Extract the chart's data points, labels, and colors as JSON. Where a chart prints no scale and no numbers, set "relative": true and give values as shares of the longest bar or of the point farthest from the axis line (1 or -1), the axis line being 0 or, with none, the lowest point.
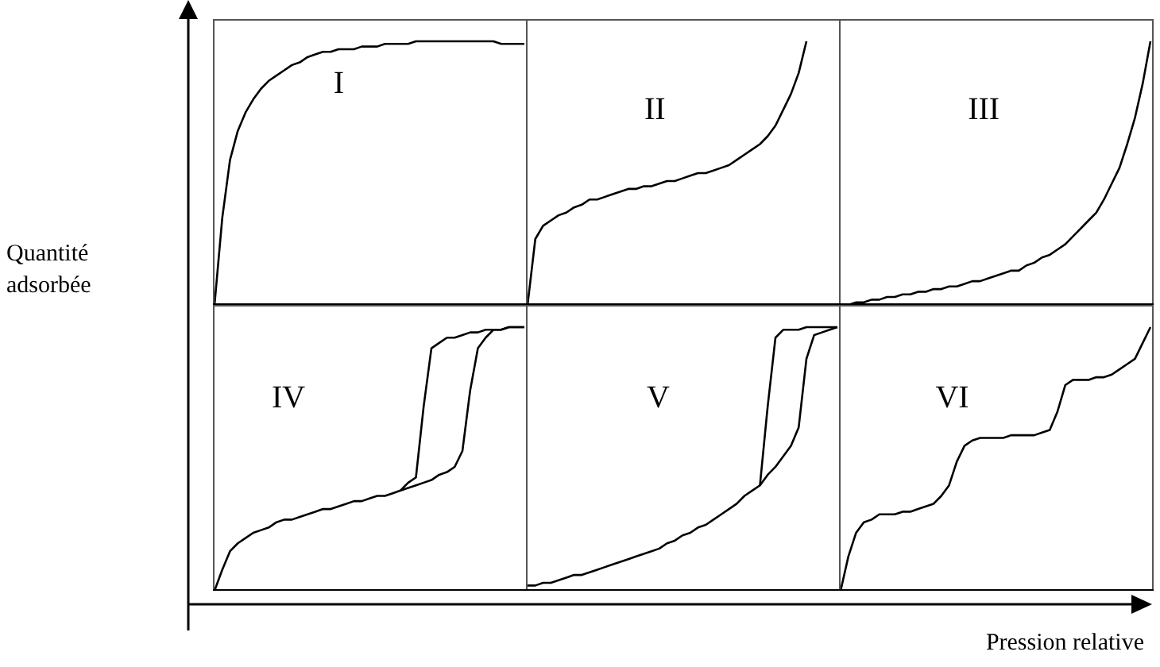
{
  "chart_data": [
    {
      "type": "line",
      "title": "I",
      "relative": true,
      "marker": "none",
      "ylabel": "Quantité adsorbée",
      "categories": [
        null,
        null,
        null,
        null,
        null,
        null,
        null,
        null,
        null,
        null,
        null,
        null,
        null,
        null,
        null,
        null,
        null,
        null,
        null,
        null,
        null,
        null,
        null,
        null,
        null,
        null,
        null,
        null,
        null,
        null,
        null,
        null,
        null,
        null,
        null,
        null,
        null,
        null,
        null,
        null,
        null
      ],
      "series": [
        {
          "color": "#000000",
          "values": [
            0,
            0.33,
            0.55,
            0.66,
            0.73,
            0.78,
            0.82,
            0.85,
            0.87,
            0.89,
            0.91,
            0.92,
            0.94,
            0.95,
            0.96,
            0.96,
            0.97,
            0.97,
            0.97,
            0.98,
            0.98,
            0.98,
            0.99,
            0.99,
            0.99,
            0.99,
            1,
            1,
            1,
            1,
            1,
            1,
            1,
            1,
            1,
            1,
            1,
            0.99,
            0.99,
            0.99,
            0.99
          ]
        }
      ]
    },
    {
      "type": "line",
      "title": "II",
      "relative": true,
      "marker": "none",
      "categories": [
        null,
        null,
        null,
        null,
        null,
        null,
        null,
        null,
        null,
        null,
        null,
        null,
        null,
        null,
        null,
        null,
        null,
        null,
        null,
        null,
        null,
        null,
        null,
        null,
        null,
        null,
        null,
        null,
        null,
        null,
        null,
        null,
        null,
        null,
        null,
        null,
        null,
        null,
        null,
        null,
        null
      ],
      "series": [
        {
          "color": "#000000",
          "values": [
            0,
            0.25,
            0.3,
            0.32,
            0.34,
            0.35,
            0.37,
            0.38,
            0.4,
            0.4,
            0.41,
            0.42,
            0.43,
            0.44,
            0.44,
            0.45,
            0.45,
            0.46,
            0.47,
            0.47,
            0.48,
            0.49,
            0.5,
            0.5,
            0.51,
            0.52,
            0.53,
            0.55,
            0.57,
            0.59,
            0.61,
            0.64,
            0.68,
            0.74,
            0.8,
            0.88,
            1,
            null,
            null,
            null,
            null
          ]
        }
      ]
    },
    {
      "type": "line",
      "title": "III",
      "relative": true,
      "marker": "none",
      "categories": [
        null,
        null,
        null,
        null,
        null,
        null,
        null,
        null,
        null,
        null,
        null,
        null,
        null,
        null,
        null,
        null,
        null,
        null,
        null,
        null,
        null,
        null,
        null,
        null,
        null,
        null,
        null,
        null,
        null,
        null,
        null,
        null,
        null,
        null,
        null,
        null,
        null,
        null,
        null,
        null,
        null
      ],
      "series": [
        {
          "color": "#000000",
          "values": [
            0,
            0,
            0.01,
            0.01,
            0.02,
            0.02,
            0.03,
            0.03,
            0.04,
            0.04,
            0.05,
            0.05,
            0.06,
            0.06,
            0.07,
            0.07,
            0.08,
            0.09,
            0.09,
            0.1,
            0.11,
            0.12,
            0.13,
            0.13,
            0.15,
            0.16,
            0.18,
            0.19,
            0.21,
            0.23,
            0.26,
            0.29,
            0.32,
            0.35,
            0.4,
            0.46,
            0.52,
            0.61,
            0.71,
            0.84,
            1
          ]
        }
      ]
    },
    {
      "type": "line",
      "title": "IV",
      "relative": true,
      "marker": "none",
      "categories": [
        null,
        null,
        null,
        null,
        null,
        null,
        null,
        null,
        null,
        null,
        null,
        null,
        null,
        null,
        null,
        null,
        null,
        null,
        null,
        null,
        null,
        null,
        null,
        null,
        null,
        null,
        null,
        null,
        null,
        null,
        null,
        null,
        null,
        null,
        null,
        null,
        null,
        null,
        null,
        null,
        null
      ],
      "series": [
        {
          "color": "#000000",
          "values": [
            0,
            0.08,
            0.15,
            0.18,
            0.2,
            0.22,
            0.23,
            0.24,
            0.26,
            0.27,
            0.27,
            0.28,
            0.29,
            0.3,
            0.31,
            0.31,
            0.32,
            0.33,
            0.34,
            0.34,
            0.35,
            0.36,
            0.36,
            0.37,
            0.38,
            0.39,
            0.4,
            0.41,
            0.42,
            0.44,
            0.45,
            0.47,
            0.53,
            0.76,
            0.92,
            0.96,
            0.99,
            0.99,
            1,
            1,
            1
          ]
        },
        {
          "color": "#000000",
          "values": [
            null,
            null,
            null,
            null,
            null,
            null,
            null,
            null,
            null,
            null,
            null,
            null,
            null,
            null,
            null,
            null,
            null,
            null,
            null,
            null,
            null,
            null,
            null,
            null,
            0.38,
            0.41,
            0.43,
            0.7,
            0.92,
            0.94,
            0.96,
            0.96,
            0.97,
            0.98,
            0.98,
            0.99,
            0.99,
            0.99,
            1,
            1,
            1
          ]
        }
      ]
    },
    {
      "type": "line",
      "title": "V",
      "relative": true,
      "marker": "none",
      "categories": [
        null,
        null,
        null,
        null,
        null,
        null,
        null,
        null,
        null,
        null,
        null,
        null,
        null,
        null,
        null,
        null,
        null,
        null,
        null,
        null,
        null,
        null,
        null,
        null,
        null,
        null,
        null,
        null,
        null,
        null,
        null,
        null,
        null,
        null,
        null,
        null,
        null,
        null,
        null,
        null,
        null
      ],
      "series": [
        {
          "color": "#000000",
          "values": [
            0.02,
            0.02,
            0.03,
            0.03,
            0.04,
            0.05,
            0.06,
            0.06,
            0.07,
            0.08,
            0.09,
            0.1,
            0.11,
            0.12,
            0.13,
            0.14,
            0.15,
            0.16,
            0.18,
            0.19,
            0.21,
            0.22,
            0.24,
            0.25,
            0.27,
            0.29,
            0.31,
            0.33,
            0.36,
            0.38,
            0.4,
            0.44,
            0.47,
            0.51,
            0.55,
            0.62,
            0.88,
            0.97,
            0.98,
            0.99,
            1
          ]
        },
        {
          "color": "#000000",
          "values": [
            null,
            null,
            null,
            null,
            null,
            null,
            null,
            null,
            null,
            null,
            null,
            null,
            null,
            null,
            null,
            null,
            null,
            null,
            null,
            null,
            null,
            null,
            null,
            null,
            null,
            null,
            null,
            null,
            null,
            null,
            0.4,
            0.7,
            0.96,
            0.99,
            0.99,
            0.99,
            1,
            1,
            1,
            1,
            1
          ]
        }
      ]
    },
    {
      "type": "line",
      "title": "VI",
      "relative": true,
      "marker": "none",
      "xlabel": "Pression relative",
      "categories": [
        null,
        null,
        null,
        null,
        null,
        null,
        null,
        null,
        null,
        null,
        null,
        null,
        null,
        null,
        null,
        null,
        null,
        null,
        null,
        null,
        null,
        null,
        null,
        null,
        null,
        null,
        null,
        null,
        null,
        null,
        null,
        null,
        null,
        null,
        null,
        null,
        null,
        null,
        null,
        null,
        null
      ],
      "series": [
        {
          "color": "#000000",
          "values": [
            0,
            0.13,
            0.22,
            0.26,
            0.27,
            0.29,
            0.29,
            0.29,
            0.3,
            0.3,
            0.31,
            0.32,
            0.33,
            0.36,
            0.4,
            0.49,
            0.55,
            0.57,
            0.58,
            0.58,
            0.58,
            0.58,
            0.59,
            0.59,
            0.59,
            0.59,
            0.6,
            0.61,
            0.68,
            0.78,
            0.8,
            0.8,
            0.8,
            0.81,
            0.81,
            0.82,
            0.84,
            0.86,
            0.88,
            0.94,
            1
          ]
        }
      ]
    }
  ]
}
